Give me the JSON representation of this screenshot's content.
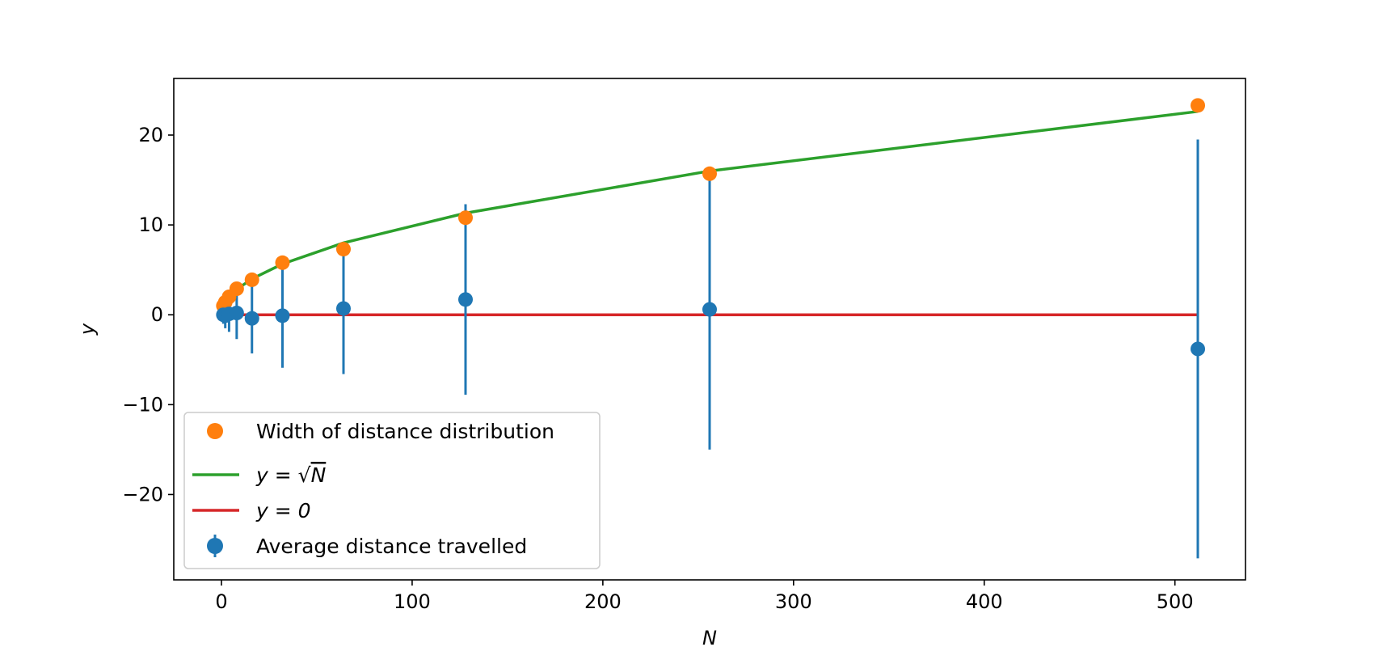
{
  "chart_data": {
    "type": "scatter",
    "title": "",
    "xlabel": "N",
    "ylabel": "y",
    "xlim": [
      -25,
      537
    ],
    "ylim": [
      -29.5,
      26.3
    ],
    "x_ticks": [
      0,
      100,
      200,
      300,
      400,
      500
    ],
    "y_ticks": [
      -20,
      -10,
      0,
      10,
      20
    ],
    "x_tick_labels": [
      "0",
      "100",
      "200",
      "300",
      "400",
      "500"
    ],
    "y_tick_labels": [
      "−20",
      "−10",
      "0",
      "10",
      "20"
    ],
    "grid": false,
    "legend_position": "lower-left",
    "x": [
      1,
      2,
      4,
      8,
      16,
      32,
      64,
      128,
      256,
      512
    ],
    "series": [
      {
        "name": "Width of distance distribution",
        "kind": "scatter",
        "color": "#ff7f0e",
        "values": [
          1.0,
          1.4,
          2.0,
          2.9,
          3.9,
          5.8,
          7.3,
          10.8,
          15.7,
          23.3
        ]
      },
      {
        "name": "y = √N",
        "legend_prefix": "y = √",
        "legend_var": "N",
        "kind": "line",
        "color": "#2ca02c",
        "values": [
          1.0,
          1.414,
          2.0,
          2.828,
          4.0,
          5.657,
          8.0,
          11.314,
          16.0,
          22.627
        ]
      },
      {
        "name": "y = 0",
        "kind": "line",
        "color": "#d62728",
        "values": [
          0,
          0,
          0,
          0,
          0,
          0,
          0,
          0,
          0,
          0
        ]
      },
      {
        "name": "Average distance travelled",
        "kind": "errorbar",
        "color": "#1f77b4",
        "values": [
          0.0,
          -0.1,
          0.1,
          0.2,
          -0.4,
          -0.1,
          0.7,
          1.7,
          0.6,
          -3.8
        ],
        "errors": [
          1.0,
          1.4,
          2.0,
          2.9,
          3.9,
          5.8,
          7.3,
          10.6,
          15.6,
          23.3
        ]
      }
    ]
  }
}
